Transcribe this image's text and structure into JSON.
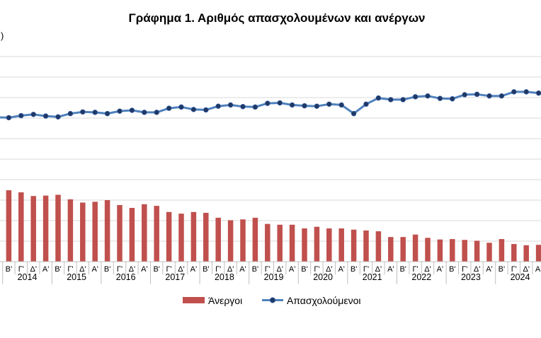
{
  "chart_data": {
    "type": "bar+line",
    "title": "Γράφημα 1. Αριθμός απασχολουμένων και ανέργων",
    "ylabel_fragment": ")",
    "quarter_labels": [
      "Α'",
      "Β'",
      "Γ'",
      "Δ'"
    ],
    "years": [
      "2014",
      "2015",
      "2016",
      "2017",
      "2018",
      "2019",
      "2020",
      "2021",
      "2022",
      "2023",
      "2024"
    ],
    "grid": true,
    "legend_position": "bottom",
    "series": [
      {
        "name": "Άνεργοι",
        "type": "bar",
        "color": "#C0504D",
        "values": [
          1.74,
          1.74,
          1.69,
          1.6,
          1.61,
          1.63,
          1.52,
          1.44,
          1.46,
          1.5,
          1.38,
          1.31,
          1.4,
          1.36,
          1.21,
          1.17,
          1.21,
          1.19,
          1.07,
          1.01,
          1.03,
          1.07,
          0.92,
          0.9,
          0.9,
          0.81,
          0.85,
          0.81,
          0.81,
          0.78,
          0.76,
          0.74,
          0.6,
          0.6,
          0.66,
          0.58,
          0.54,
          0.55,
          0.53,
          0.51,
          0.46,
          0.55,
          0.43,
          0.4,
          0.41
        ]
      },
      {
        "name": "Απασχολούμενοι",
        "type": "line",
        "color": "#4F81BD",
        "values": [
          3.52,
          3.51,
          3.56,
          3.59,
          3.55,
          3.53,
          3.61,
          3.65,
          3.64,
          3.61,
          3.67,
          3.69,
          3.64,
          3.64,
          3.74,
          3.77,
          3.71,
          3.7,
          3.79,
          3.82,
          3.78,
          3.77,
          3.86,
          3.87,
          3.82,
          3.8,
          3.79,
          3.84,
          3.82,
          3.61,
          3.84,
          3.99,
          3.95,
          3.95,
          4.02,
          4.04,
          3.98,
          3.97,
          4.07,
          4.08,
          4.04,
          4.04,
          4.14,
          4.14,
          4.11
        ]
      }
    ]
  }
}
